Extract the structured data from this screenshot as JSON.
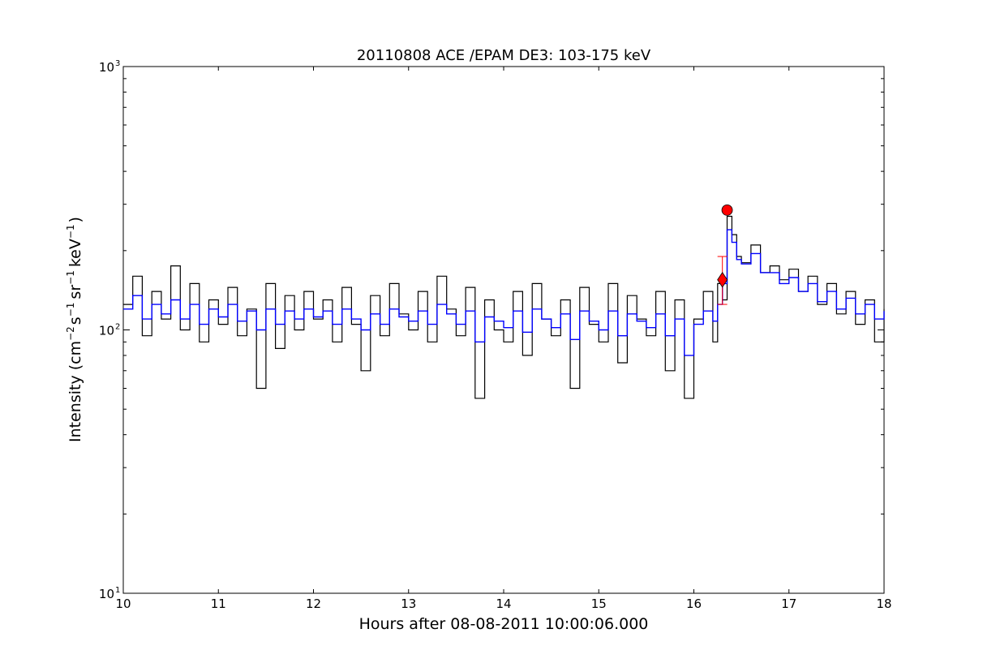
{
  "chart_data": {
    "type": "line",
    "title": "20110808 ACE /EPAM DE3: 103-175 keV",
    "xlabel": "Hours after 08-08-2011 10:00:06.000",
    "ylabel": {
      "prefix": "Intensity (cm",
      "exp1": "−2",
      "part2": "s",
      "exp2": "−1",
      "part3": "sr",
      "exp3": "−1",
      "part4": "keV",
      "exp4": "−1",
      "suffix": ")"
    },
    "xlim": [
      10,
      18
    ],
    "ylim": [
      10,
      1000
    ],
    "yscale": "log",
    "grid": false,
    "x_ticks": [
      "10",
      "11",
      "12",
      "13",
      "14",
      "15",
      "16",
      "17",
      "18"
    ],
    "y_ticks": [
      {
        "base": "10",
        "exp": "1",
        "value": 10
      },
      {
        "base": "10",
        "exp": "2",
        "value": 100
      },
      {
        "base": "10",
        "exp": "3",
        "value": 1000
      }
    ],
    "series": [
      {
        "color": "#000000",
        "x": [
          10.0,
          10.1,
          10.2,
          10.3,
          10.4,
          10.5,
          10.6,
          10.7,
          10.8,
          10.9,
          11.0,
          11.1,
          11.2,
          11.3,
          11.4,
          11.5,
          11.6,
          11.7,
          11.8,
          11.9,
          12.0,
          12.1,
          12.2,
          12.3,
          12.4,
          12.5,
          12.6,
          12.7,
          12.8,
          12.9,
          13.0,
          13.1,
          13.2,
          13.3,
          13.4,
          13.5,
          13.6,
          13.7,
          13.8,
          13.9,
          14.0,
          14.1,
          14.2,
          14.3,
          14.4,
          14.5,
          14.6,
          14.7,
          14.8,
          14.9,
          15.0,
          15.1,
          15.2,
          15.3,
          15.4,
          15.5,
          15.6,
          15.7,
          15.8,
          15.9,
          16.0,
          16.1,
          16.2,
          16.25,
          16.3,
          16.35,
          16.4,
          16.45,
          16.5,
          16.6,
          16.7,
          16.8,
          16.9,
          17.0,
          17.1,
          17.2,
          17.3,
          17.4,
          17.5,
          17.6,
          17.7,
          17.8,
          17.9,
          18.0
        ],
        "y": [
          125,
          160,
          95,
          140,
          110,
          175,
          100,
          150,
          90,
          130,
          105,
          145,
          95,
          120,
          60,
          150,
          85,
          135,
          100,
          140,
          110,
          130,
          90,
          145,
          105,
          70,
          135,
          95,
          150,
          115,
          100,
          140,
          90,
          160,
          120,
          95,
          145,
          55,
          130,
          100,
          90,
          140,
          80,
          150,
          110,
          95,
          130,
          60,
          145,
          105,
          90,
          150,
          75,
          135,
          110,
          95,
          140,
          70,
          130,
          55,
          110,
          140,
          90,
          150,
          130,
          270,
          230,
          190,
          180,
          210,
          165,
          175,
          155,
          170,
          140,
          160,
          125,
          150,
          115,
          140,
          105,
          130,
          90,
          120
        ]
      },
      {
        "color": "#0000ff",
        "x": [
          10.0,
          10.1,
          10.2,
          10.3,
          10.4,
          10.5,
          10.6,
          10.7,
          10.8,
          10.9,
          11.0,
          11.1,
          11.2,
          11.3,
          11.4,
          11.5,
          11.6,
          11.7,
          11.8,
          11.9,
          12.0,
          12.1,
          12.2,
          12.3,
          12.4,
          12.5,
          12.6,
          12.7,
          12.8,
          12.9,
          13.0,
          13.1,
          13.2,
          13.3,
          13.4,
          13.5,
          13.6,
          13.7,
          13.8,
          13.9,
          14.0,
          14.1,
          14.2,
          14.3,
          14.4,
          14.5,
          14.6,
          14.7,
          14.8,
          14.9,
          15.0,
          15.1,
          15.2,
          15.3,
          15.4,
          15.5,
          15.6,
          15.7,
          15.8,
          15.9,
          16.0,
          16.1,
          16.2,
          16.25,
          16.3,
          16.35,
          16.4,
          16.45,
          16.5,
          16.6,
          16.7,
          16.8,
          16.9,
          17.0,
          17.1,
          17.2,
          17.3,
          17.4,
          17.5,
          17.6,
          17.7,
          17.8,
          17.9,
          18.0
        ],
        "y": [
          120,
          135,
          110,
          125,
          115,
          130,
          110,
          125,
          105,
          120,
          112,
          125,
          108,
          118,
          100,
          120,
          105,
          118,
          110,
          120,
          112,
          118,
          105,
          120,
          110,
          100,
          115,
          105,
          120,
          112,
          108,
          118,
          105,
          125,
          115,
          105,
          118,
          90,
          112,
          108,
          102,
          118,
          98,
          120,
          110,
          102,
          115,
          92,
          118,
          108,
          100,
          118,
          95,
          115,
          108,
          102,
          115,
          95,
          110,
          80,
          105,
          118,
          108,
          125,
          150,
          240,
          215,
          185,
          178,
          195,
          165,
          165,
          150,
          158,
          140,
          150,
          128,
          140,
          120,
          132,
          115,
          125,
          110,
          118
        ]
      }
    ],
    "markers": [
      {
        "shape": "diamond",
        "color": "#ff0000",
        "x": 16.3,
        "y": 155,
        "err": [
          125,
          190
        ]
      },
      {
        "shape": "circle",
        "color": "#ff0000",
        "x": 16.35,
        "y": 285
      }
    ]
  }
}
